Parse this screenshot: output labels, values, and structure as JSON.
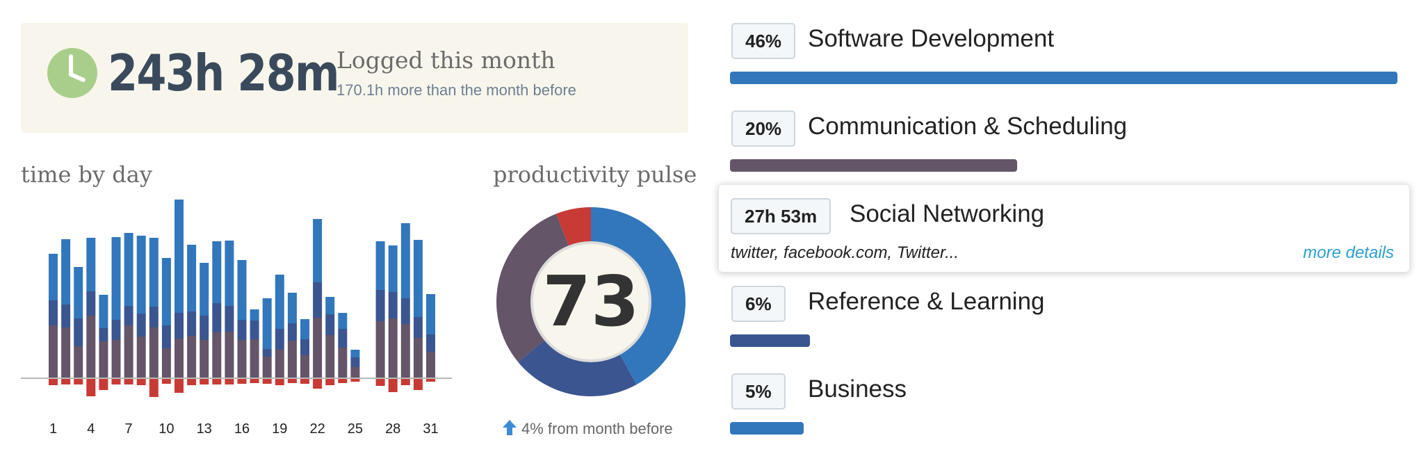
{
  "summary": {
    "total": "243h 28m",
    "label": "Logged this month",
    "comparison": "170.1h more than the month before"
  },
  "time_by_day": {
    "title": "time by day",
    "tick_labels": [
      "1",
      "4",
      "7",
      "10",
      "13",
      "16",
      "19",
      "22",
      "25",
      "28",
      "31"
    ],
    "chart_data": {
      "type": "bar",
      "stacked": true,
      "categories": [
        1,
        2,
        3,
        4,
        5,
        6,
        7,
        8,
        9,
        10,
        11,
        12,
        13,
        14,
        15,
        16,
        17,
        18,
        19,
        20,
        21,
        22,
        23,
        24,
        25,
        26,
        27,
        28,
        29,
        30,
        31
      ],
      "series": [
        {
          "color": "#645569",
          "values": [
            76,
            73,
            46,
            90,
            53,
            55,
            76,
            60,
            73,
            43,
            57,
            61,
            55,
            66,
            67,
            55,
            56,
            31,
            41,
            54,
            33,
            87,
            62,
            44,
            16,
            0,
            82,
            86,
            78,
            58,
            38
          ]
        },
        {
          "color": "#3b5590",
          "values": [
            36,
            33,
            40,
            35,
            19,
            29,
            28,
            33,
            30,
            33,
            37,
            35,
            35,
            42,
            37,
            29,
            27,
            11,
            30,
            25,
            23,
            51,
            30,
            27,
            14,
            0,
            45,
            38,
            37,
            30,
            25
          ]
        },
        {
          "color": "#3277bc",
          "values": [
            67,
            94,
            74,
            77,
            48,
            119,
            105,
            112,
            99,
            97,
            163,
            96,
            76,
            89,
            94,
            86,
            16,
            73,
            78,
            44,
            29,
            91,
            25,
            23,
            11,
            0,
            70,
            67,
            108,
            111,
            58
          ]
        },
        {
          "color": "#c83a35",
          "values": [
            -10,
            -9,
            -9,
            -26,
            -17,
            -9,
            -9,
            -10,
            -27,
            -8,
            -21,
            -10,
            -9,
            -9,
            -9,
            -8,
            -7,
            -8,
            -10,
            -7,
            -8,
            -15,
            -10,
            -7,
            -5,
            0,
            -11,
            -20,
            -10,
            -17,
            -5
          ]
        }
      ]
    }
  },
  "pulse": {
    "title": "productivity pulse",
    "score": "73",
    "change": "4% from month before",
    "chart_data": {
      "type": "pie",
      "values": [
        42,
        22,
        30,
        6
      ],
      "colors": [
        "#3277bc",
        "#3b5590",
        "#645569",
        "#c83a35"
      ]
    }
  },
  "categories": [
    {
      "badge": "46%",
      "name": "Software Development",
      "bar_fraction": 1.0,
      "color": "#3277bc"
    },
    {
      "badge": "20%",
      "name": "Communication & Scheduling",
      "bar_fraction": 0.43,
      "color": "#645569"
    },
    {
      "badge": "6%",
      "name": "Reference & Learning",
      "bar_fraction": 0.12,
      "color": "#3b5590"
    },
    {
      "badge": "5%",
      "name": "Business",
      "bar_fraction": 0.11,
      "color": "#3277bc"
    }
  ],
  "hover_card": {
    "badge": "27h 53m",
    "name": "Social Networking",
    "sites": "twitter, facebook.com, Twitter...",
    "link": "more details"
  },
  "colors": {
    "very_productive": "#3277bc",
    "productive": "#3b5590",
    "neutral": "#645569",
    "distracting": "#c83a35",
    "clock": "#a9ce8c",
    "link": "#2b9fd0"
  }
}
